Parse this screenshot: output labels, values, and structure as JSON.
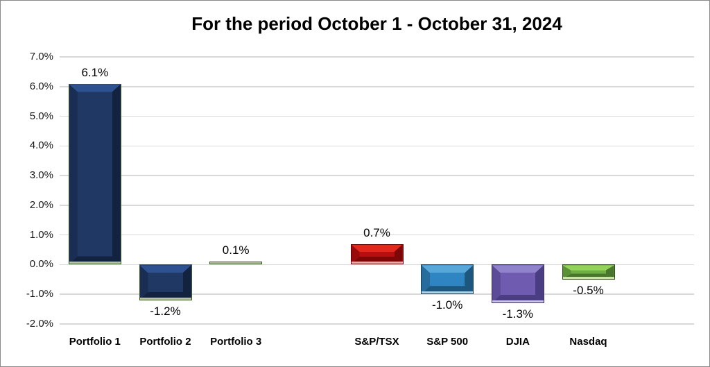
{
  "page": {
    "background": "#ffffff",
    "border_color": "#898989"
  },
  "chart_data": {
    "type": "bar",
    "title": "For the period October 1 - October 31, 2024",
    "categories": [
      "Portfolio 1",
      "Portfolio 2",
      "Portfolio 3",
      "",
      "S&P/TSX",
      "S&P 500",
      "DJIA",
      "Nasdaq",
      ""
    ],
    "values": [
      6.1,
      -1.2,
      0.1,
      null,
      0.7,
      -1.0,
      -1.3,
      -0.5,
      null
    ],
    "data_labels": [
      "6.1%",
      "-1.2%",
      "0.1%",
      null,
      "0.7%",
      "-1.0%",
      "-1.3%",
      "-0.5%",
      null
    ],
    "xlabel": "",
    "ylabel": "",
    "ylim": [
      -2.0,
      7.0
    ],
    "ytick_step": 1.0,
    "yticks": [
      "7.0%",
      "6.0%",
      "5.0%",
      "4.0%",
      "3.0%",
      "2.0%",
      "1.0%",
      "0.0%",
      "-1.0%",
      "-2.0%"
    ],
    "grid": true,
    "legend": "none",
    "gridline_color": "#d9d9d9",
    "bar_style": "3d-bevel",
    "bar_palette": [
      "navy",
      "navy",
      "navy",
      null,
      "red",
      "blue",
      "purple",
      "green",
      null
    ],
    "palettes": {
      "navy": {
        "base": "#1f3864",
        "light": "#2e5191",
        "dark": "#13233f",
        "side": "#192e52",
        "border": "#3a5a28",
        "edge": "#b7c49e"
      },
      "red": {
        "base": "#b70f0f",
        "light": "#e5261d",
        "dark": "#7d0606",
        "side": "#990b0b",
        "border": "#5e0303",
        "edge": "#e5b0b0"
      },
      "blue": {
        "base": "#2f85c2",
        "light": "#57a7d9",
        "dark": "#1d567e",
        "side": "#266d9e",
        "border": "#16405d",
        "edge": "#aed4ea"
      },
      "purple": {
        "base": "#6f5cb0",
        "light": "#9183cb",
        "dark": "#4b3d82",
        "side": "#5c4b96",
        "border": "#362b61",
        "edge": "#cdc5e6"
      },
      "green": {
        "base": "#6fad45",
        "light": "#94d35a",
        "dark": "#49762c",
        "side": "#5c9038",
        "border": "#2d4c1b",
        "edge": "#cbe3a5"
      }
    }
  }
}
